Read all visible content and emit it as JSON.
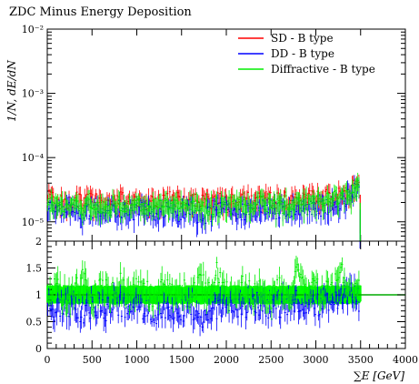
{
  "chart_data": [
    {
      "panel": "main",
      "type": "scatter",
      "title": "ZDC Minus Energy Deposition",
      "ylabel": "1/N, dE/dN",
      "xlim": [
        0,
        4000
      ],
      "ylim": [
        5e-06,
        0.01
      ],
      "log_y": true,
      "y_ticks": [
        {
          "value": 0.01,
          "label": "10⁻²"
        },
        {
          "value": 0.001,
          "label": "10⁻³"
        },
        {
          "value": 0.0001,
          "label": "10⁻⁴"
        },
        {
          "value": 1e-05,
          "label": "10⁻⁵"
        }
      ],
      "legend_position": "top-right",
      "series": [
        {
          "name": "SD - B type",
          "color": "#ff0000",
          "x": [
            25,
            100,
            200,
            300,
            400,
            500,
            600,
            700,
            800,
            900,
            1000,
            1100,
            1200,
            1300,
            1400,
            1500,
            1600,
            1700,
            1800,
            1900,
            2000,
            2100,
            2200,
            2300,
            2400,
            2500,
            2600,
            2700,
            2800,
            2900,
            3000,
            3100,
            3200,
            3300,
            3400,
            3475,
            3500
          ],
          "y": [
            2.4e-05,
            2.2e-05,
            2e-05,
            2.3e-05,
            2.1e-05,
            2.2e-05,
            2e-05,
            2.1e-05,
            2.3e-05,
            2.2e-05,
            2.1e-05,
            2.2e-05,
            2e-05,
            2.2e-05,
            2.3e-05,
            2.1e-05,
            2.2e-05,
            2.1e-05,
            2.2e-05,
            2.3e-05,
            2.2e-05,
            2.1e-05,
            2.3e-05,
            2.2e-05,
            2.4e-05,
            2.3e-05,
            2.2e-05,
            2.4e-05,
            2.3e-05,
            2.5e-05,
            2.4e-05,
            2.5e-05,
            2.6e-05,
            2.8e-05,
            3.2e-05,
            4e-05,
            1.2e-05
          ]
        },
        {
          "name": "DD - B type",
          "color": "#0000ff",
          "x": [
            25,
            100,
            200,
            300,
            400,
            500,
            600,
            700,
            800,
            900,
            1000,
            1100,
            1200,
            1300,
            1400,
            1500,
            1600,
            1700,
            1800,
            1900,
            2000,
            2100,
            2200,
            2300,
            2400,
            2500,
            2600,
            2700,
            2800,
            2900,
            3000,
            3100,
            3200,
            3300,
            3400,
            3475,
            3500
          ],
          "y": [
            1.8e-05,
            1.4e-05,
            1.6e-05,
            1.5e-05,
            1.3e-05,
            1.6e-05,
            1.4e-05,
            1.5e-05,
            1.7e-05,
            1.4e-05,
            1.6e-05,
            1.5e-05,
            1.3e-05,
            1.6e-05,
            1.5e-05,
            1.4e-05,
            1.6e-05,
            1.2e-05,
            1.4e-05,
            1.5e-05,
            1.6e-05,
            1.4e-05,
            1.5e-05,
            1.6e-05,
            1.7e-05,
            1.5e-05,
            1.6e-05,
            1.7e-05,
            1.8e-05,
            1.7e-05,
            1.6e-05,
            1.8e-05,
            2e-05,
            2.2e-05,
            2.8e-05,
            3.5e-05,
            7e-06
          ]
        },
        {
          "name": "Diffractive - B type",
          "color": "#00ee00",
          "x": [
            25,
            100,
            200,
            300,
            400,
            500,
            600,
            700,
            800,
            900,
            1000,
            1100,
            1200,
            1300,
            1400,
            1500,
            1600,
            1700,
            1800,
            1900,
            2000,
            2100,
            2200,
            2300,
            2400,
            2500,
            2600,
            2700,
            2800,
            2900,
            3000,
            3100,
            3200,
            3300,
            3400,
            3475,
            3500
          ],
          "y": [
            2.1e-05,
            1.8e-05,
            1.8e-05,
            1.9e-05,
            1.7e-05,
            1.9e-05,
            1.7e-05,
            1.8e-05,
            2e-05,
            1.8e-05,
            1.9e-05,
            1.8e-05,
            1.7e-05,
            1.9e-05,
            1.9e-05,
            1.8e-05,
            1.9e-05,
            1.7e-05,
            1.8e-05,
            1.9e-05,
            1.9e-05,
            1.8e-05,
            1.9e-05,
            1.9e-05,
            2e-05,
            1.9e-05,
            1.9e-05,
            2e-05,
            2e-05,
            2.1e-05,
            2e-05,
            2.1e-05,
            2.3e-05,
            2.5e-05,
            3e-05,
            3.7e-05,
            9e-06
          ]
        }
      ]
    },
    {
      "panel": "ratio",
      "type": "scatter",
      "xlabel": "∑E [GeV]",
      "xlim": [
        0,
        4000
      ],
      "ylim": [
        0,
        2
      ],
      "x_ticks": [
        {
          "value": 0,
          "label": "0"
        },
        {
          "value": 500,
          "label": "500"
        },
        {
          "value": 1000,
          "label": "1000"
        },
        {
          "value": 1500,
          "label": "1500"
        },
        {
          "value": 2000,
          "label": "2000"
        },
        {
          "value": 2500,
          "label": "2500"
        },
        {
          "value": 3000,
          "label": "3000"
        },
        {
          "value": 3500,
          "label": "3500"
        },
        {
          "value": 4000,
          "label": "4000"
        }
      ],
      "y_ticks": [
        {
          "value": 0,
          "label": "0"
        },
        {
          "value": 0.5,
          "label": "0.5"
        },
        {
          "value": 1,
          "label": "1"
        },
        {
          "value": 1.5,
          "label": "1.5"
        },
        {
          "value": 2,
          "label": "2"
        }
      ],
      "reference_line": 1,
      "reference_color": "#00aa00",
      "band_color": "#00ff00",
      "band": [
        0.85,
        1.15
      ],
      "band_xrange": [
        0,
        3500
      ],
      "series": [
        {
          "name": "DD - B type",
          "color": "#0000ff",
          "x": [
            25,
            100,
            200,
            300,
            400,
            500,
            600,
            700,
            800,
            900,
            1000,
            1100,
            1200,
            1300,
            1400,
            1500,
            1600,
            1700,
            1800,
            1900,
            2000,
            2100,
            2200,
            2300,
            2400,
            2500,
            2600,
            2700,
            2800,
            2900,
            3000,
            3100,
            3200,
            3300,
            3400,
            3475
          ],
          "y": [
            0.85,
            0.7,
            0.8,
            0.75,
            0.65,
            0.8,
            0.7,
            0.75,
            0.85,
            0.7,
            0.8,
            0.75,
            0.65,
            0.8,
            0.75,
            0.7,
            0.8,
            0.55,
            0.7,
            0.75,
            0.8,
            0.7,
            0.75,
            0.8,
            0.85,
            0.75,
            0.8,
            0.85,
            0.9,
            0.8,
            0.8,
            0.85,
            0.9,
            0.95,
            1.0,
            0.9
          ]
        },
        {
          "name": "Diffractive - B type",
          "color": "#00ee00",
          "x": [
            25,
            100,
            200,
            300,
            400,
            500,
            600,
            700,
            800,
            900,
            1000,
            1100,
            1200,
            1300,
            1400,
            1500,
            1600,
            1700,
            1800,
            1900,
            2000,
            2100,
            2200,
            2300,
            2400,
            2500,
            2600,
            2700,
            2800,
            2900,
            3000,
            3100,
            3200,
            3300,
            3400,
            3475
          ],
          "y": [
            1.05,
            1.2,
            0.95,
            1.1,
            1.3,
            0.9,
            1.15,
            1.0,
            1.25,
            0.9,
            1.1,
            1.05,
            0.95,
            1.2,
            1.0,
            1.1,
            0.95,
            1.3,
            1.0,
            1.45,
            1.05,
            0.95,
            1.2,
            1.0,
            1.1,
            0.9,
            1.15,
            1.0,
            1.5,
            1.05,
            1.1,
            1.0,
            1.2,
            1.4,
            1.0,
            1.05
          ]
        }
      ]
    }
  ]
}
